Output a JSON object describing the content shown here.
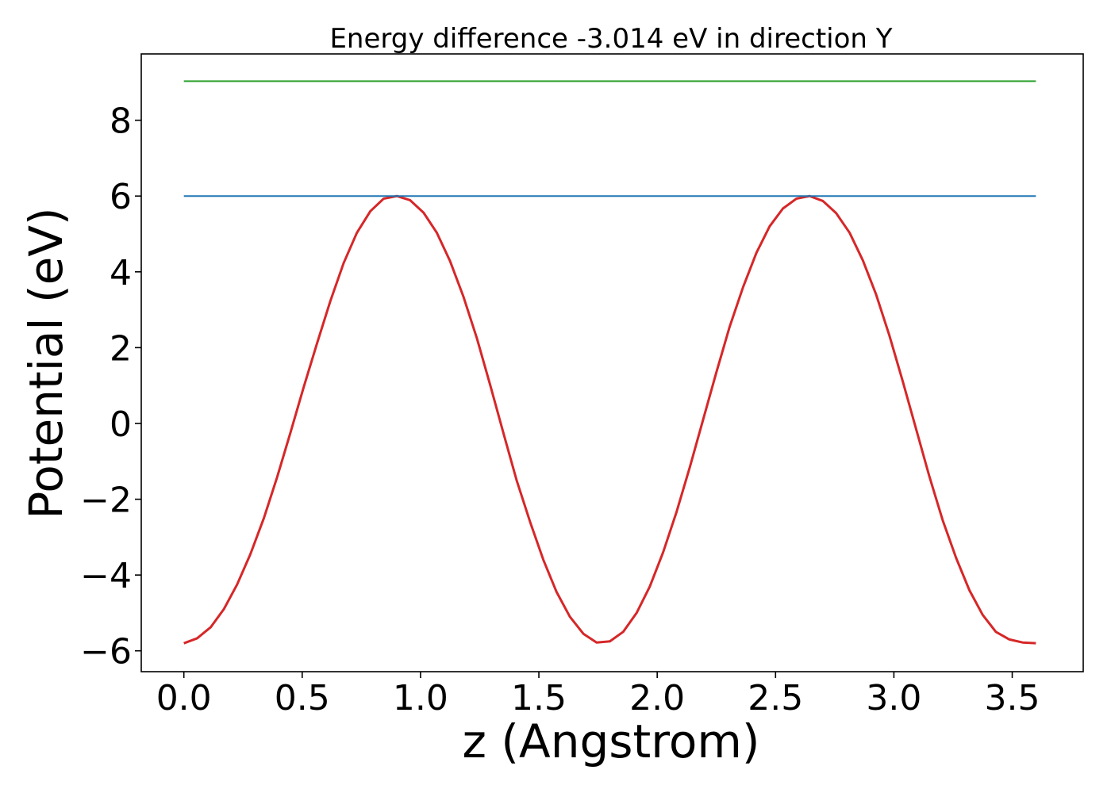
{
  "chart_data": {
    "type": "line",
    "title": "Energy difference -3.014 eV in direction Y",
    "xlabel": "z (Angstrom)",
    "ylabel": "Potential (eV)",
    "xlim": [
      -0.18,
      3.8
    ],
    "ylim": [
      -6.55,
      9.75
    ],
    "grid": false,
    "x_ticks": [
      0.0,
      0.5,
      1.0,
      1.5,
      2.0,
      2.5,
      3.0,
      3.5
    ],
    "x_tick_labels": [
      "0.0",
      "0.5",
      "1.0",
      "1.5",
      "2.0",
      "2.5",
      "3.0",
      "3.5"
    ],
    "y_ticks": [
      -6,
      -4,
      -2,
      0,
      2,
      4,
      6,
      8
    ],
    "y_tick_labels": [
      "−6",
      "−4",
      "−2",
      "0",
      "2",
      "4",
      "6",
      "8"
    ],
    "series": [
      {
        "color": "#d62728",
        "x": [
          0.0,
          0.056,
          0.113,
          0.169,
          0.225,
          0.281,
          0.338,
          0.394,
          0.45,
          0.506,
          0.563,
          0.619,
          0.675,
          0.731,
          0.788,
          0.844,
          0.9,
          0.956,
          1.013,
          1.069,
          1.125,
          1.181,
          1.238,
          1.294,
          1.35,
          1.406,
          1.463,
          1.519,
          1.575,
          1.631,
          1.688,
          1.744,
          1.8,
          1.856,
          1.913,
          1.969,
          2.025,
          2.081,
          2.138,
          2.194,
          2.25,
          2.306,
          2.363,
          2.419,
          2.475,
          2.531,
          2.588,
          2.644,
          2.7,
          2.756,
          2.813,
          2.869,
          2.925,
          2.981,
          3.038,
          3.094,
          3.15,
          3.206,
          3.263,
          3.319,
          3.375,
          3.431,
          3.488,
          3.544,
          3.6
        ],
        "y": [
          -5.8,
          -5.67,
          -5.38,
          -4.9,
          -4.25,
          -3.45,
          -2.5,
          -1.42,
          -0.25,
          0.95,
          2.12,
          3.23,
          4.23,
          5.03,
          5.6,
          5.93,
          6.0,
          5.89,
          5.56,
          5.03,
          4.28,
          3.35,
          2.25,
          1.02,
          -0.25,
          -1.5,
          -2.6,
          -3.6,
          -4.45,
          -5.1,
          -5.55,
          -5.78,
          -5.75,
          -5.5,
          -5.0,
          -4.3,
          -3.4,
          -2.35,
          -1.15,
          0.1,
          1.35,
          2.55,
          3.6,
          4.5,
          5.2,
          5.67,
          5.93,
          6.0,
          5.87,
          5.55,
          5.03,
          4.3,
          3.4,
          2.32,
          1.1,
          -0.15,
          -1.4,
          -2.55,
          -3.55,
          -4.4,
          -5.05,
          -5.5,
          -5.7,
          -5.78,
          -5.8
        ]
      },
      {
        "color": "#1f77b4",
        "x": [
          0.0,
          3.6
        ],
        "y": [
          6.0,
          6.0
        ]
      },
      {
        "color": "#2ca02c",
        "x": [
          0.0,
          3.6
        ],
        "y": [
          9.03,
          9.03
        ]
      }
    ]
  }
}
